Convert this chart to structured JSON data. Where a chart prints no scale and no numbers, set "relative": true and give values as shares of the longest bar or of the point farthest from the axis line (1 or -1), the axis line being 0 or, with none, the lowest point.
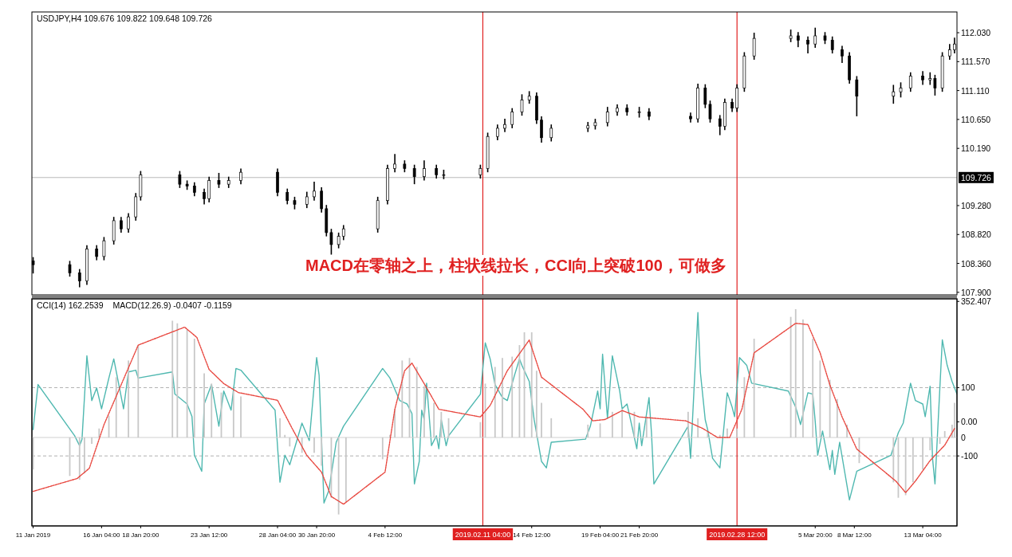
{
  "chart_data": [
    {
      "type": "candlestick",
      "title": "USDJPY,H4 109.676 109.822 109.648 109.726",
      "tick_labels": "y",
      "xlim": [
        "2019-01-11T10:00",
        "2019-03-15T12:00"
      ],
      "ylim": [
        107.86,
        112.36
      ],
      "yticks": [
        {
          "value": 107.9,
          "label": "107.900"
        },
        {
          "value": 108.36,
          "label": "108.360"
        },
        {
          "value": 108.82,
          "label": "108.820"
        },
        {
          "value": 109.28,
          "label": "109.280"
        },
        {
          "value": 110.19,
          "label": "110.190"
        },
        {
          "value": 110.65,
          "label": "110.650"
        },
        {
          "value": 111.11,
          "label": "111.110"
        },
        {
          "value": 111.57,
          "label": "111.570"
        },
        {
          "value": 112.03,
          "label": "112.030"
        }
      ],
      "ref_lines": [
        {
          "axis": "y",
          "value": 109.726,
          "label": "109.726",
          "color": "#b8b8b8"
        },
        {
          "axis": "x",
          "value": "2019-02-11T04:00",
          "color": "#e02020"
        },
        {
          "axis": "x",
          "value": "2019-02-28T12:00",
          "color": "#e02020"
        }
      ],
      "annotations": [
        "MACD在零轴之上，柱状线拉长，CCI向上突破100，可做多"
      ],
      "x": [
        "2019-01-11T12:00",
        "2019-01-14T00:00",
        "2019-01-14T16:00",
        "2019-01-15T04:00",
        "2019-01-15T20:00",
        "2019-01-16T08:00",
        "2019-01-17T00:00",
        "2019-01-17T12:00",
        "2019-01-18T00:00",
        "2019-01-18T12:00",
        "2019-01-18T20:00",
        "2019-01-21T12:00",
        "2019-01-22T00:00",
        "2019-01-22T12:00",
        "2019-01-23T04:00",
        "2019-01-23T12:00",
        "2019-01-24T04:00",
        "2019-01-24T20:00",
        "2019-01-25T16:00",
        "2019-01-28T04:00",
        "2019-01-28T20:00",
        "2019-01-29T08:00",
        "2019-01-30T04:00",
        "2019-01-30T16:00",
        "2019-01-31T04:00",
        "2019-01-31T12:00",
        "2019-01-31T20:00",
        "2019-02-01T08:00",
        "2019-02-01T16:00",
        "2019-02-04T00:00",
        "2019-02-04T16:00",
        "2019-02-05T04:00",
        "2019-02-05T20:00",
        "2019-02-06T12:00",
        "2019-02-07T04:00",
        "2019-02-08T00:00",
        "2019-02-08T12:00",
        "2019-02-11T00:00",
        "2019-02-11T12:00",
        "2019-02-12T04:00",
        "2019-02-12T16:00",
        "2019-02-13T04:00",
        "2019-02-13T20:00",
        "2019-02-14T08:00",
        "2019-02-14T20:00",
        "2019-02-15T04:00",
        "2019-02-15T20:00",
        "2019-02-18T08:00",
        "2019-02-18T20:00",
        "2019-02-19T16:00",
        "2019-02-20T08:00",
        "2019-02-21T00:00",
        "2019-02-21T20:00",
        "2019-02-22T12:00",
        "2019-02-25T08:00",
        "2019-02-25T20:00",
        "2019-02-26T08:00",
        "2019-02-26T16:00",
        "2019-02-27T08:00",
        "2019-02-27T16:00",
        "2019-02-28T04:00",
        "2019-02-28T12:00",
        "2019-03-01T00:00",
        "2019-03-01T16:00",
        "2019-03-04T04:00",
        "2019-03-04T16:00",
        "2019-03-05T08:00",
        "2019-03-05T20:00",
        "2019-03-06T12:00",
        "2019-03-07T00:00",
        "2019-03-07T16:00",
        "2019-03-08T04:00",
        "2019-03-08T16:00",
        "2019-03-11T04:00",
        "2019-03-11T16:00",
        "2019-03-12T08:00",
        "2019-03-13T04:00",
        "2019-03-13T16:00",
        "2019-03-14T00:00",
        "2019-03-14T12:00",
        "2019-03-15T00:00",
        "2019-03-15T08:00"
      ],
      "ohlc": [
        [
          108.4,
          108.46,
          108.2,
          108.34
        ],
        [
          108.34,
          108.4,
          108.15,
          108.21
        ],
        [
          108.21,
          108.27,
          107.98,
          108.08
        ],
        [
          108.08,
          108.65,
          108.02,
          108.59
        ],
        [
          108.59,
          108.65,
          108.41,
          108.47
        ],
        [
          108.47,
          108.78,
          108.41,
          108.72
        ],
        [
          108.72,
          109.1,
          108.66,
          109.04
        ],
        [
          109.04,
          109.1,
          108.85,
          108.91
        ],
        [
          108.91,
          109.16,
          108.85,
          109.1
        ],
        [
          109.1,
          109.48,
          109.04,
          109.42
        ],
        [
          109.42,
          109.83,
          109.36,
          109.77
        ],
        [
          109.77,
          109.83,
          109.56,
          109.62
        ],
        [
          109.62,
          109.68,
          109.53,
          109.59
        ],
        [
          109.59,
          109.65,
          109.43,
          109.49
        ],
        [
          109.49,
          109.55,
          109.3,
          109.39
        ],
        [
          109.39,
          109.74,
          109.33,
          109.68
        ],
        [
          109.68,
          109.8,
          109.56,
          109.62
        ],
        [
          109.62,
          109.74,
          109.56,
          109.68
        ],
        [
          109.68,
          109.87,
          109.62,
          109.81
        ],
        [
          109.81,
          109.87,
          109.43,
          109.49
        ],
        [
          109.49,
          109.55,
          109.3,
          109.36
        ],
        [
          109.36,
          109.42,
          109.22,
          109.3
        ],
        [
          109.3,
          109.5,
          109.24,
          109.42
        ],
        [
          109.42,
          109.66,
          109.36,
          109.51
        ],
        [
          109.51,
          109.57,
          109.17,
          109.23
        ],
        [
          109.23,
          109.29,
          108.79,
          108.85
        ],
        [
          108.85,
          108.91,
          108.5,
          108.66
        ],
        [
          108.66,
          108.85,
          108.6,
          108.79
        ],
        [
          108.79,
          108.97,
          108.73,
          108.91
        ],
        [
          108.91,
          109.42,
          108.85,
          109.36
        ],
        [
          109.36,
          109.93,
          109.3,
          109.87
        ],
        [
          109.87,
          110.1,
          109.81,
          109.94
        ],
        [
          109.94,
          110.0,
          109.81,
          109.87
        ],
        [
          109.87,
          109.93,
          109.62,
          109.74
        ],
        [
          109.74,
          110.0,
          109.68,
          109.87
        ],
        [
          109.87,
          109.93,
          109.71,
          109.77
        ],
        [
          109.77,
          109.85,
          109.7,
          109.77
        ],
        [
          109.77,
          109.93,
          109.71,
          109.87
        ],
        [
          109.87,
          110.44,
          109.81,
          110.38
        ],
        [
          110.38,
          110.57,
          110.32,
          110.51
        ],
        [
          110.51,
          110.66,
          110.45,
          110.57
        ],
        [
          110.57,
          110.83,
          110.51,
          110.77
        ],
        [
          110.77,
          111.05,
          110.71,
          110.96
        ],
        [
          110.96,
          111.1,
          110.9,
          111.02
        ],
        [
          111.02,
          111.08,
          110.58,
          110.64
        ],
        [
          110.64,
          110.7,
          110.28,
          110.36
        ],
        [
          110.36,
          110.57,
          110.3,
          110.51
        ],
        [
          110.51,
          110.61,
          110.45,
          110.55
        ],
        [
          110.55,
          110.66,
          110.49,
          110.6
        ],
        [
          110.6,
          110.85,
          110.54,
          110.77
        ],
        [
          110.77,
          110.89,
          110.71,
          110.83
        ],
        [
          110.83,
          110.89,
          110.71,
          110.77
        ],
        [
          110.77,
          110.85,
          110.68,
          110.77
        ],
        [
          110.77,
          110.83,
          110.64,
          110.7
        ],
        [
          110.7,
          110.76,
          110.6,
          110.66
        ],
        [
          110.66,
          111.22,
          110.6,
          111.15
        ],
        [
          111.15,
          111.21,
          110.83,
          110.89
        ],
        [
          110.89,
          110.95,
          110.6,
          110.66
        ],
        [
          110.66,
          110.72,
          110.4,
          110.54
        ],
        [
          110.54,
          110.98,
          110.48,
          110.92
        ],
        [
          110.92,
          110.98,
          110.77,
          110.83
        ],
        [
          110.83,
          111.21,
          110.77,
          111.15
        ],
        [
          111.15,
          111.72,
          111.09,
          111.66
        ],
        [
          111.66,
          112.03,
          111.6,
          111.94
        ],
        [
          111.94,
          112.08,
          111.88,
          111.98
        ],
        [
          111.98,
          112.04,
          111.8,
          111.91
        ],
        [
          111.91,
          111.97,
          111.7,
          111.85
        ],
        [
          111.85,
          112.11,
          111.79,
          111.98
        ],
        [
          111.98,
          112.04,
          111.85,
          111.91
        ],
        [
          111.91,
          111.97,
          111.7,
          111.76
        ],
        [
          111.76,
          111.82,
          111.55,
          111.66
        ],
        [
          111.66,
          111.72,
          111.22,
          111.28
        ],
        [
          111.28,
          111.34,
          110.7,
          111.02
        ],
        [
          111.02,
          111.2,
          110.9,
          111.09
        ],
        [
          111.09,
          111.24,
          111.0,
          111.15
        ],
        [
          111.15,
          111.4,
          111.09,
          111.34
        ],
        [
          111.34,
          111.42,
          111.2,
          111.28
        ],
        [
          111.28,
          111.4,
          111.2,
          111.3
        ],
        [
          111.3,
          111.36,
          111.03,
          111.15
        ],
        [
          111.15,
          111.72,
          111.09,
          111.66
        ],
        [
          111.66,
          111.85,
          111.6,
          111.76
        ],
        [
          111.76,
          111.95,
          111.7,
          111.85
        ]
      ]
    },
    {
      "type": "line",
      "title": "CCI(14) 162.2539",
      "color": "#4fb8b0",
      "xlim": [
        "2019-01-11T10:00",
        "2019-03-15T12:00"
      ],
      "ylim": [
        -305,
        360
      ],
      "yticks": [
        {
          "value": 352.407,
          "label": "352.407"
        },
        100,
        {
          "value": 0,
          "label": "0.00"
        },
        -100
      ],
      "xticks": [
        {
          "value": "2019-01-11T12:00",
          "label": "11 Jan 2019"
        },
        {
          "value": "2019-01-16T04:00",
          "label": "16 Jan 04:00"
        },
        {
          "value": "2019-01-18T20:00",
          "label": "18 Jan 20:00"
        },
        {
          "value": "2019-01-23T12:00",
          "label": "23 Jan 12:00"
        },
        {
          "value": "2019-01-28T04:00",
          "label": "28 Jan 04:00"
        },
        {
          "value": "2019-01-30T20:00",
          "label": "30 Jan 20:00"
        },
        {
          "value": "2019-02-04T12:00",
          "label": "4 Feb 12:00"
        },
        {
          "value": "2019-02-14T12:00",
          "label": "14 Feb 12:00"
        },
        {
          "value": "2019-02-19T04:00",
          "label": "19 Feb 04:00"
        },
        {
          "value": "2019-02-21T20:00",
          "label": "21 Feb 20:00"
        },
        {
          "value": "2019-03-05T20:00",
          "label": "5 Mar 20:00"
        },
        {
          "value": "2019-03-08T12:00",
          "label": "8 Mar 12:00"
        },
        {
          "value": "2019-03-13T04:00",
          "label": "13 Mar 04:00"
        }
      ],
      "ref_lines": [
        {
          "axis": "y",
          "value": 100,
          "color": "#b0b0b0",
          "line_style": "dashed"
        },
        {
          "axis": "y",
          "value": -100,
          "color": "#b0b0b0",
          "line_style": "dashed"
        },
        {
          "axis": "x",
          "value": "2019-02-11T04:00",
          "label": "2019.02.11 04:00",
          "color": "#e02020"
        },
        {
          "axis": "x",
          "value": "2019-02-28T12:00",
          "label": "2019.02.28 12:00",
          "color": "#e02020"
        }
      ],
      "x": [
        "2019-01-11T12:00",
        "2019-01-11T20:00",
        "2019-01-14T08:00",
        "2019-01-14T16:00",
        "2019-01-14T20:00",
        "2019-01-15T04:00",
        "2019-01-15T12:00",
        "2019-01-15T20:00",
        "2019-01-16T04:00",
        "2019-01-16T16:00",
        "2019-01-17T00:00",
        "2019-01-17T16:00",
        "2019-01-18T00:00",
        "2019-01-18T12:00",
        "2019-01-18T16:00",
        "2019-01-21T00:00",
        "2019-01-21T04:00",
        "2019-01-22T00:00",
        "2019-01-22T08:00",
        "2019-01-22T12:00",
        "2019-01-23T00:00",
        "2019-01-23T04:00",
        "2019-01-23T16:00",
        "2019-01-24T04:00",
        "2019-01-24T12:00",
        "2019-01-25T00:00",
        "2019-01-25T08:00",
        "2019-01-25T16:00",
        "2019-01-28T00:00",
        "2019-01-28T08:00",
        "2019-01-28T16:00",
        "2019-01-29T00:00",
        "2019-01-29T20:00",
        "2019-01-30T08:00",
        "2019-01-30T20:00",
        "2019-01-31T00:00",
        "2019-01-31T08:00",
        "2019-01-31T16:00",
        "2019-02-01T04:00",
        "2019-02-01T16:00",
        "2019-02-04T08:00",
        "2019-02-04T20:00",
        "2019-02-05T12:00",
        "2019-02-06T00:00",
        "2019-02-06T08:00",
        "2019-02-06T12:00",
        "2019-02-06T20:00",
        "2019-02-07T00:00",
        "2019-02-07T04:00",
        "2019-02-07T08:00",
        "2019-02-07T16:00",
        "2019-02-08T00:00",
        "2019-02-08T04:00",
        "2019-02-08T08:00",
        "2019-02-08T16:00",
        "2019-02-08T20:00",
        "2019-02-11T00:00",
        "2019-02-11T08:00",
        "2019-02-11T16:00",
        "2019-02-12T00:00",
        "2019-02-12T12:00",
        "2019-02-12T20:00",
        "2019-02-13T08:00",
        "2019-02-13T16:00",
        "2019-02-13T20:00",
        "2019-02-14T08:00",
        "2019-02-14T16:00",
        "2019-02-15T04:00",
        "2019-02-15T12:00",
        "2019-02-15T20:00",
        "2019-02-18T04:00",
        "2019-02-18T12:00",
        "2019-02-19T00:00",
        "2019-02-19T04:00",
        "2019-02-19T08:00",
        "2019-02-19T16:00",
        "2019-02-20T00:00",
        "2019-02-20T12:00",
        "2019-02-20T16:00",
        "2019-02-21T00:00",
        "2019-02-21T08:00",
        "2019-02-21T16:00",
        "2019-02-21T20:00",
        "2019-02-22T00:00",
        "2019-02-22T12:00",
        "2019-02-22T16:00",
        "2019-02-22T20:00",
        "2019-02-25T04:00",
        "2019-02-25T08:00",
        "2019-02-25T20:00",
        "2019-02-26T00:00",
        "2019-02-26T08:00",
        "2019-02-26T12:00",
        "2019-02-26T20:00",
        "2019-02-27T08:00",
        "2019-02-27T20:00",
        "2019-02-28T04:00",
        "2019-02-28T08:00",
        "2019-02-28T16:00",
        "2019-03-01T04:00",
        "2019-03-01T12:00",
        "2019-03-04T00:00",
        "2019-03-04T12:00",
        "2019-03-04T20:00",
        "2019-03-05T08:00",
        "2019-03-05T16:00",
        "2019-03-05T20:00",
        "2019-03-06T00:00",
        "2019-03-06T08:00",
        "2019-03-06T20:00",
        "2019-03-07T00:00",
        "2019-03-07T04:00",
        "2019-03-07T12:00",
        "2019-03-08T04:00",
        "2019-03-08T16:00",
        "2019-03-11T00:00",
        "2019-03-11T12:00",
        "2019-03-11T20:00",
        "2019-03-12T08:00",
        "2019-03-12T16:00",
        "2019-03-13T04:00",
        "2019-03-13T08:00",
        "2019-03-13T16:00",
        "2019-03-13T20:00",
        "2019-03-14T00:00",
        "2019-03-14T12:00",
        "2019-03-14T20:00",
        "2019-03-15T04:00",
        "2019-03-15T12:00"
      ],
      "values": [
        -23,
        109,
        -41,
        -70,
        -51,
        193,
        62,
        99,
        38,
        128,
        184,
        38,
        146,
        151,
        128,
        146,
        81,
        52,
        15,
        -98,
        -145,
        52,
        109,
        -13,
        90,
        34,
        156,
        151,
        34,
        -177,
        -98,
        -126,
        -4,
        -55,
        188,
        137,
        -238,
        -201,
        -60,
        -13,
        156,
        128,
        62,
        52,
        24,
        -182,
        -116,
        34,
        6,
        113,
        -70,
        -41,
        -79,
        6,
        -70,
        -41,
        81,
        231,
        184,
        109,
        71,
        62,
        137,
        184,
        165,
        118,
        6,
        -116,
        -135,
        -60,
        -51,
        -13,
        90,
        38,
        198,
        10,
        193,
        90,
        38,
        52,
        -13,
        -79,
        -4,
        -70,
        71,
        -32,
        -182,
        -13,
        -107,
        320,
        146,
        6,
        -23,
        -107,
        -135,
        85,
        43,
        15,
        188,
        165,
        113,
        90,
        43,
        -8,
        85,
        81,
        1,
        -98,
        -27,
        -140,
        -84,
        -154,
        -60,
        -229,
        -145,
        -98,
        -32,
        -4,
        113,
        62,
        52,
        15,
        104,
        -107,
        -182,
        240,
        165,
        118,
        81
      ]
    },
    {
      "type": "bar",
      "title": "MACD(12.26.9) -0.0407 -0.1159",
      "relative": true,
      "tick_labels": false,
      "xlim": [
        "2019-01-11T10:00",
        "2019-03-15T12:00"
      ],
      "ref_lines": [
        {
          "axis": "y",
          "value": 0,
          "label": "0"
        }
      ],
      "series": [
        {
          "color": "#c8c8c8",
          "x": [
            "2019-01-11T12:00",
            "2019-01-14T00:00",
            "2019-01-14T16:00",
            "2019-01-15T00:00",
            "2019-01-15T12:00",
            "2019-01-16T00:00",
            "2019-01-16T16:00",
            "2019-01-17T04:00",
            "2019-01-18T00:00",
            "2019-01-18T16:00",
            "2019-01-21T00:00",
            "2019-01-21T08:00",
            "2019-01-22T00:00",
            "2019-01-22T12:00",
            "2019-01-23T04:00",
            "2019-01-23T16:00",
            "2019-01-24T08:00",
            "2019-01-25T04:00",
            "2019-01-25T16:00",
            "2019-01-28T08:00",
            "2019-01-28T16:00",
            "2019-01-29T00:00",
            "2019-01-29T20:00",
            "2019-01-30T16:00",
            "2019-01-31T04:00",
            "2019-01-31T20:00",
            "2019-02-01T08:00",
            "2019-02-01T20:00",
            "2019-02-04T08:00",
            "2019-02-04T20:00",
            "2019-02-05T04:00",
            "2019-02-05T16:00",
            "2019-02-06T04:00",
            "2019-02-06T16:00",
            "2019-02-07T04:00",
            "2019-02-07T20:00",
            "2019-02-08T08:00",
            "2019-02-08T20:00",
            "2019-02-11T00:00",
            "2019-02-11T08:00",
            "2019-02-12T00:00",
            "2019-02-12T12:00",
            "2019-02-13T04:00",
            "2019-02-13T16:00",
            "2019-02-14T00:00",
            "2019-02-14T12:00",
            "2019-02-14T20:00",
            "2019-02-15T04:00",
            "2019-02-15T20:00",
            "2019-02-18T08:00",
            "2019-02-19T04:00",
            "2019-02-20T00:00",
            "2019-02-20T16:00",
            "2019-02-21T12:00",
            "2019-02-22T08:00",
            "2019-02-25T04:00",
            "2019-02-25T20:00",
            "2019-02-26T12:00",
            "2019-02-27T08:00",
            "2019-02-27T20:00",
            "2019-02-28T12:00",
            "2019-03-01T00:00",
            "2019-03-01T16:00",
            "2019-03-04T04:00",
            "2019-03-04T12:00",
            "2019-03-05T00:00",
            "2019-03-05T16:00",
            "2019-03-06T04:00",
            "2019-03-06T20:00",
            "2019-03-07T08:00",
            "2019-03-08T00:00",
            "2019-03-08T20:00",
            "2019-03-11T04:00",
            "2019-03-11T12:00",
            "2019-03-12T00:00",
            "2019-03-12T12:00",
            "2019-03-13T04:00",
            "2019-03-13T16:00",
            "2019-03-14T08:00",
            "2019-03-14T16:00",
            "2019-03-15T04:00",
            "2019-03-15T08:00"
          ],
          "values": [
            -0.25,
            -0.3,
            -0.33,
            -0.28,
            -0.05,
            0.07,
            0.17,
            0.47,
            0.6,
            0.72,
            0.91,
            0.89,
            0.84,
            0.77,
            0.5,
            0.42,
            0.35,
            0.36,
            0.32,
            0.15,
            0.02,
            -0.07,
            -0.12,
            -0.12,
            -0.22,
            -0.47,
            -0.6,
            -0.5,
            -0.17,
            0.02,
            0.22,
            0.6,
            0.62,
            0.55,
            0.4,
            0.27,
            0.2,
            0.15,
            0.12,
            0.42,
            0.55,
            0.62,
            0.63,
            0.72,
            0.82,
            0.82,
            0.52,
            0.27,
            0.15,
            0.1,
            0.11,
            0.2,
            0.22,
            0.2,
            0.15,
            0.2,
            0.15,
            0.05,
            0.02,
            0.07,
            0.07,
            0.47,
            0.77,
            0.94,
            1,
            0.92,
            0.77,
            0.6,
            0.45,
            0.3,
            0.1,
            -0.2,
            -0.35,
            -0.47,
            -0.45,
            -0.35,
            -0.25,
            -0.1,
            -0.05,
            0.05,
            0.1,
            0.27
          ]
        },
        {
          "type": "line",
          "color": "#e8473f",
          "line_style": "dotted",
          "x": [
            "2019-01-11T12:00",
            "2019-01-14T12:00",
            "2019-01-15T08:00",
            "2019-01-16T08:00",
            "2019-01-17T12:00",
            "2019-01-18T16:00",
            "2019-01-21T20:00",
            "2019-01-22T16:00",
            "2019-01-23T12:00",
            "2019-01-24T12:00",
            "2019-01-25T12:00",
            "2019-01-28T04:00",
            "2019-01-29T04:00",
            "2019-01-30T04:00",
            "2019-01-31T04:00",
            "2019-01-31T20:00",
            "2019-02-01T16:00",
            "2019-02-04T12:00",
            "2019-02-05T04:00",
            "2019-02-05T20:00",
            "2019-02-06T08:00",
            "2019-02-07T04:00",
            "2019-02-08T04:00",
            "2019-02-11T00:00",
            "2019-02-11T16:00",
            "2019-02-12T20:00",
            "2019-02-14T08:00",
            "2019-02-15T04:00",
            "2019-02-18T00:00",
            "2019-02-18T16:00",
            "2019-02-19T12:00",
            "2019-02-20T16:00",
            "2019-02-21T20:00",
            "2019-02-25T00:00",
            "2019-02-26T04:00",
            "2019-02-27T04:00",
            "2019-02-28T00:00",
            "2019-02-28T20:00",
            "2019-03-01T16:00",
            "2019-03-04T12:00",
            "2019-03-05T08:00",
            "2019-03-06T04:00",
            "2019-03-06T20:00",
            "2019-03-07T16:00",
            "2019-03-08T16:00",
            "2019-03-11T08:00",
            "2019-03-12T00:00",
            "2019-03-12T16:00",
            "2019-03-13T16:00",
            "2019-03-14T16:00",
            "2019-03-15T08:00"
          ],
          "values": [
            -0.42,
            -0.32,
            -0.24,
            0.1,
            0.41,
            0.72,
            0.86,
            0.78,
            0.53,
            0.42,
            0.35,
            0.29,
            0.07,
            -0.14,
            -0.27,
            -0.46,
            -0.52,
            -0.27,
            0.22,
            0.52,
            0.58,
            0.42,
            0.22,
            0.16,
            0.25,
            0.52,
            0.76,
            0.47,
            0.22,
            0.13,
            0.14,
            0.21,
            0.16,
            0.13,
            0.07,
            0,
            0,
            0.22,
            0.66,
            0.89,
            0.88,
            0.66,
            0.41,
            0.16,
            -0.09,
            -0.34,
            -0.43,
            -0.34,
            -0.18,
            -0.06,
            0.07
          ]
        }
      ]
    }
  ]
}
